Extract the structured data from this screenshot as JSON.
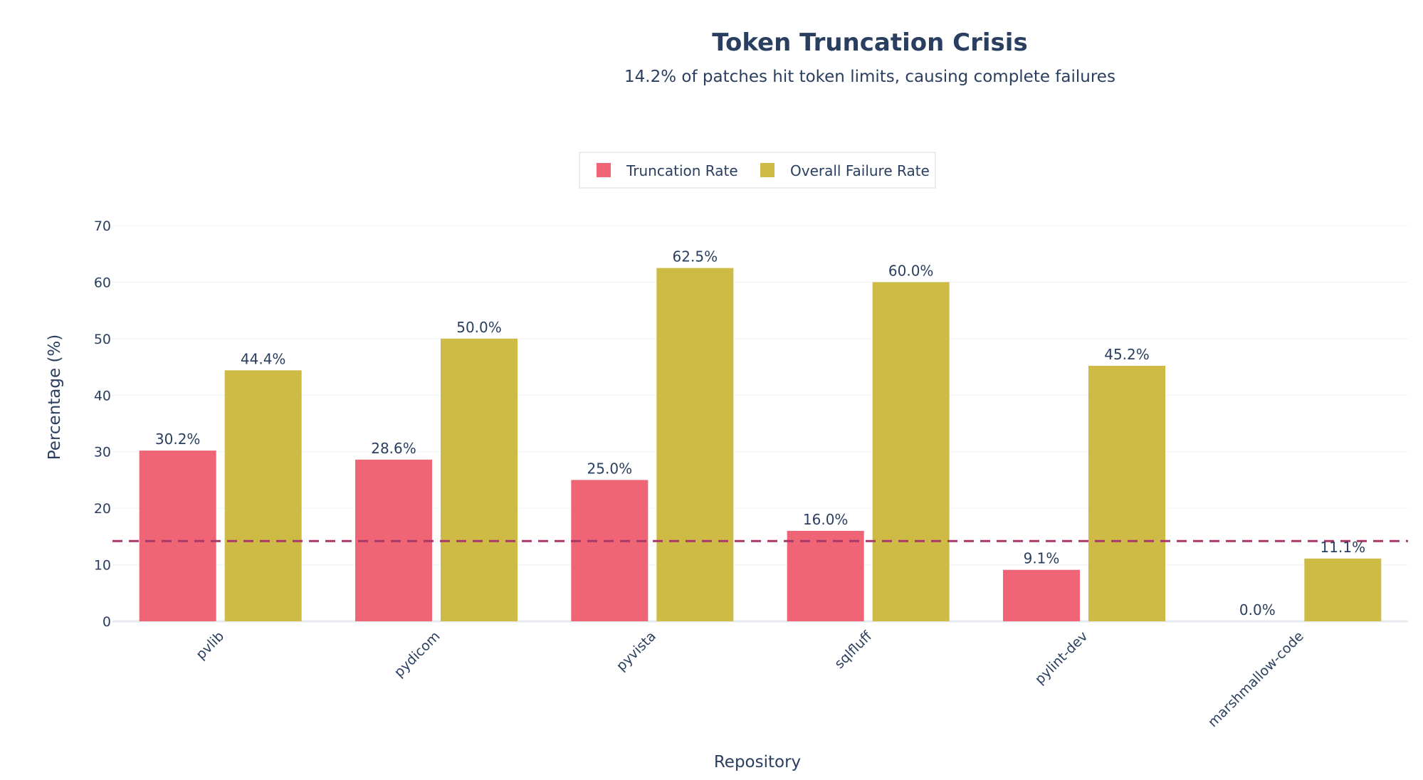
{
  "chart_data": {
    "type": "bar",
    "title": "Token Truncation Crisis",
    "subtitle": "14.2% of patches hit token limits, causing complete failures",
    "xlabel": "Repository",
    "ylabel": "Percentage (%)",
    "ylim": [
      0,
      70
    ],
    "yticks": [
      0,
      10,
      20,
      30,
      40,
      50,
      60,
      70
    ],
    "grid": true,
    "legend_position": "top-center",
    "categories": [
      "pvlib",
      "pydicom",
      "pyvista",
      "sqlfluff",
      "pylint-dev",
      "marshmallow-code"
    ],
    "series": [
      {
        "name": "Truncation Rate",
        "color": "#ef6575",
        "values": [
          30.2,
          28.6,
          25.0,
          16.0,
          9.1,
          0.0
        ],
        "labels": [
          "30.2%",
          "28.6%",
          "25.0%",
          "16.0%",
          "9.1%",
          "0.0%"
        ]
      },
      {
        "name": "Overall Failure Rate",
        "color": "#cdbb45",
        "values": [
          44.4,
          50.0,
          62.5,
          60.0,
          45.2,
          11.1
        ],
        "labels": [
          "44.4%",
          "50.0%",
          "62.5%",
          "60.0%",
          "45.2%",
          "11.1%"
        ]
      }
    ],
    "reference_line": {
      "value": 14.2,
      "color": "#a8386a",
      "style": "dashed"
    }
  }
}
